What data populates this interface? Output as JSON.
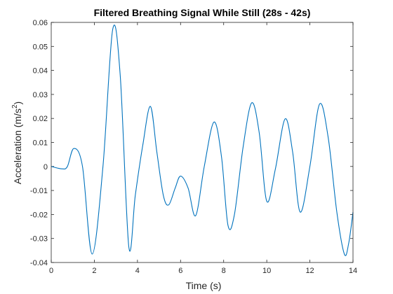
{
  "chart_data": {
    "type": "line",
    "title": "Filtered Breathing Signal While Still (28s - 42s)",
    "xlabel": "Time (s)",
    "ylabel_base": "Acceleration (m/s",
    "ylabel_sup": "2",
    "ylabel_close": ")",
    "xlim": [
      0,
      14
    ],
    "ylim": [
      -0.04,
      0.06
    ],
    "xticks": [
      0,
      2,
      4,
      6,
      8,
      10,
      12,
      14
    ],
    "xtick_labels": [
      "0",
      "2",
      "4",
      "6",
      "8",
      "10",
      "12",
      "14"
    ],
    "yticks": [
      -0.04,
      -0.03,
      -0.02,
      -0.01,
      0,
      0.01,
      0.02,
      0.03,
      0.04,
      0.05,
      0.06
    ],
    "ytick_labels": [
      "-0.04",
      "-0.03",
      "-0.02",
      "-0.01",
      "0",
      "0.01",
      "0.02",
      "0.03",
      "0.04",
      "0.05",
      "0.06"
    ],
    "grid": false,
    "box": true,
    "line_color": "#0072BD",
    "series": [
      {
        "x": [
          0,
          0.5,
          0.75,
          1.05,
          1.45,
          1.9,
          2.4,
          2.85,
          3.2,
          3.6,
          3.9,
          4.25,
          4.6,
          4.9,
          5.2,
          5.45,
          5.75,
          6.0,
          6.35,
          6.7,
          7.1,
          7.55,
          7.9,
          8.2,
          8.5,
          8.9,
          9.3,
          9.65,
          10.0,
          10.4,
          10.85,
          11.2,
          11.55,
          12.0,
          12.45,
          12.85,
          13.25,
          13.6,
          13.8,
          14.0
        ],
        "y": [
          0,
          -0.001,
          0.0,
          0.0075,
          0.0,
          -0.0365,
          0.0,
          0.057,
          0.038,
          -0.0335,
          -0.012,
          0.009,
          0.025,
          0.006,
          -0.012,
          -0.016,
          -0.009,
          -0.004,
          -0.009,
          -0.0205,
          0.0,
          0.0185,
          0.004,
          -0.0245,
          -0.02,
          0.008,
          0.0265,
          0.014,
          -0.0145,
          -0.001,
          0.0198,
          0.006,
          -0.019,
          0.0,
          0.026,
          0.012,
          -0.019,
          -0.0365,
          -0.032,
          -0.019
        ]
      }
    ]
  }
}
